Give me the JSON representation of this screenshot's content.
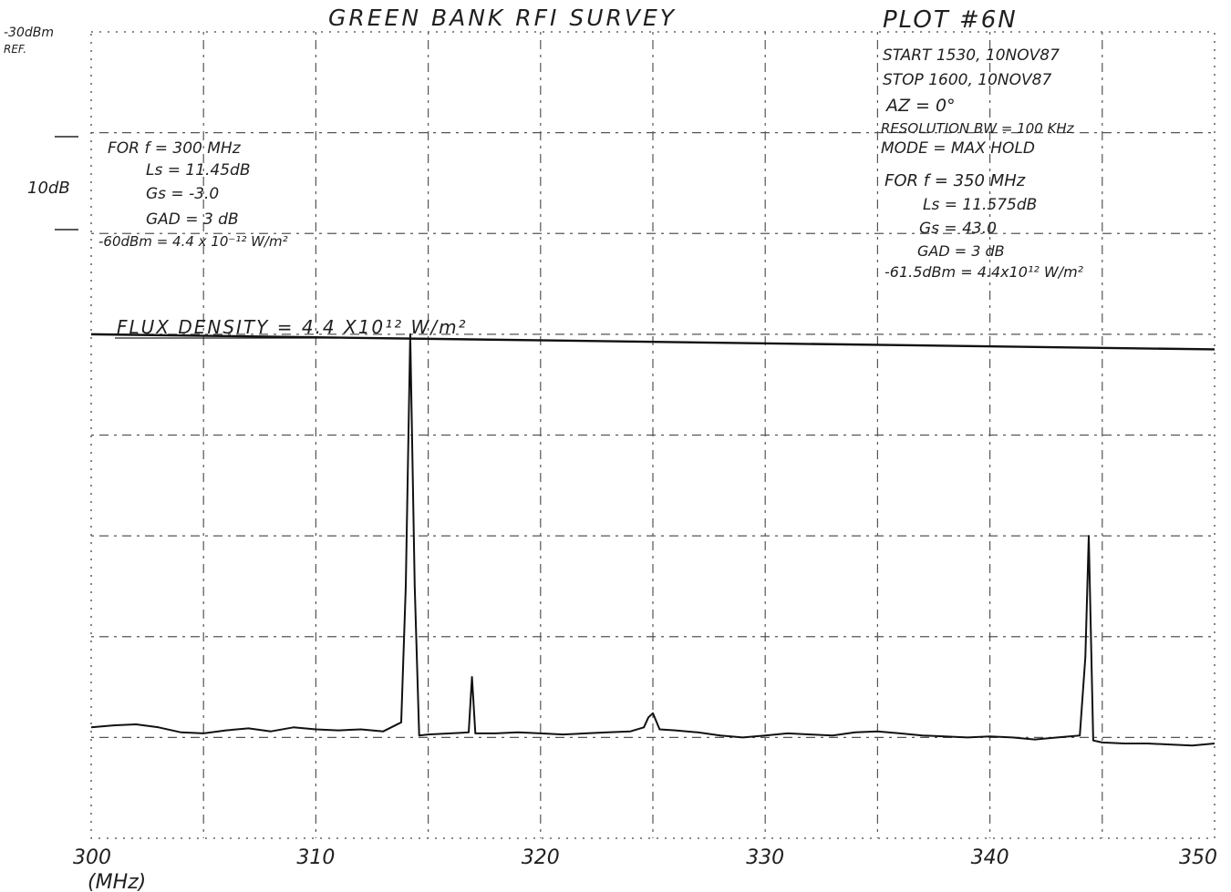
{
  "chart_data": {
    "type": "line",
    "title": "GREEN BANK RFI SURVEY",
    "plot_number": "PLOT #6N",
    "xlabel": "(MHz)",
    "x_ticks": [
      "300",
      "310",
      "320",
      "330",
      "340",
      "350"
    ],
    "xlim": [
      300,
      350
    ],
    "ylim": [
      -110,
      -30
    ],
    "grid": "on",
    "reference_label": [
      "-30dBm",
      "REF."
    ],
    "scale_label": "10dB",
    "left_notes": [
      "FOR f = 300 MHz",
      "Ls = 11.45dB",
      "Gs = -3.0",
      "GAD = 3 dB",
      "-60dBm = 4.4 x 10⁻¹² W/m²"
    ],
    "right_notes": [
      "START 1530, 10NOV87",
      "STOP 1600, 10NOV87",
      "AZ = 0°",
      "RESOLUTION BW = 100 KHz",
      "MODE = MAX HOLD",
      "FOR f = 350 MHz",
      "Ls = 11.575dB",
      "Gs = 43.0",
      "GAD = 3 dB",
      "-61.5dBm = 4.4x10¹² W/m²"
    ],
    "flux_label": "FLUX DENSITY = 4.4 X10¹² W/m²",
    "flux_level": {
      "x": [
        300,
        350
      ],
      "y": [
        -60,
        -61.5
      ]
    },
    "series": [
      {
        "x": [
          300,
          301,
          302,
          303,
          304,
          305,
          306,
          307,
          308,
          309,
          310,
          311,
          312,
          313,
          313.8,
          314.0,
          314.2,
          314.4,
          314.6,
          315,
          316,
          316.8,
          316.95,
          317.1,
          317.3,
          318,
          319,
          320,
          321,
          322,
          323,
          324,
          324.6,
          324.8,
          325.0,
          325.3,
          326,
          327,
          328,
          329,
          330,
          331,
          332,
          333,
          334,
          335,
          336,
          337,
          338,
          339,
          340,
          341,
          342,
          343,
          344,
          344.25,
          344.4,
          344.6,
          345,
          346,
          347,
          348,
          349,
          350
        ],
        "y": [
          -99,
          -98.8,
          -98.7,
          -99.0,
          -99.5,
          -99.6,
          -99.3,
          -99.1,
          -99.4,
          -99.0,
          -99.2,
          -99.3,
          -99.2,
          -99.4,
          -98.5,
          -85,
          -60,
          -85,
          -99.8,
          -99.7,
          -99.6,
          -99.5,
          -94,
          -99.6,
          -99.6,
          -99.6,
          -99.5,
          -99.6,
          -99.7,
          -99.6,
          -99.5,
          -99.4,
          -99,
          -98,
          -97.6,
          -99.2,
          -99.3,
          -99.5,
          -99.8,
          -100,
          -99.8,
          -99.6,
          -99.7,
          -99.8,
          -99.5,
          -99.4,
          -99.6,
          -99.8,
          -99.9,
          -100,
          -99.9,
          -100,
          -100.2,
          -100,
          -99.8,
          -92,
          -80,
          -100.3,
          -100.5,
          -100.6,
          -100.6,
          -100.7,
          -100.8,
          -100.6
        ]
      }
    ]
  }
}
